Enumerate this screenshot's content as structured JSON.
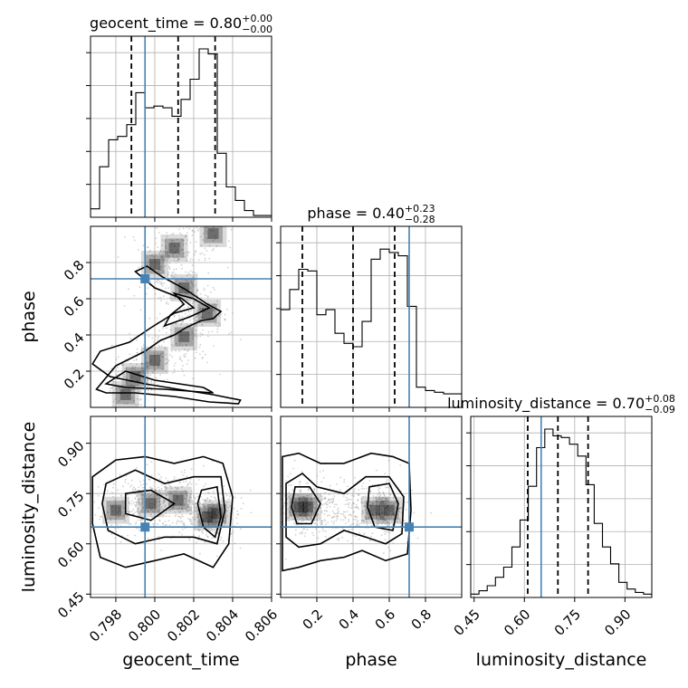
{
  "chart_data": {
    "type": "corner",
    "parameters": [
      {
        "name": "geocent_time",
        "axis_label": "geocent_time",
        "title": "geocent_time = 0.80",
        "title_plus": "+0.00",
        "title_minus": "−0.00",
        "range": [
          0.7967,
          0.806
        ],
        "ticks": [
          0.798,
          0.8,
          0.802,
          0.804,
          0.806
        ],
        "tick_labels": [
          "0.798",
          "0.800",
          "0.802",
          "0.804",
          "0.806"
        ],
        "quantiles": [
          0.7988,
          0.8012,
          0.8031
        ],
        "truth": 0.7995,
        "hist": [
          0.05,
          0.3,
          0.46,
          0.48,
          0.55,
          0.74,
          0.65,
          0.66,
          0.65,
          0.6,
          0.7,
          0.82,
          1.0,
          0.97,
          0.38,
          0.18,
          0.1,
          0.04,
          0.01,
          0.01
        ]
      },
      {
        "name": "phase",
        "axis_label": "phase",
        "title": "phase = 0.40",
        "title_plus": "+0.23",
        "title_minus": "−0.28",
        "range": [
          0.0,
          1.0
        ],
        "ticks": [
          0.2,
          0.4,
          0.6,
          0.8
        ],
        "tick_labels": [
          "0.2",
          "0.4",
          "0.6",
          "0.8"
        ],
        "quantiles": [
          0.12,
          0.4,
          0.63
        ],
        "truth": 0.71,
        "hist": [
          0.58,
          0.7,
          0.82,
          0.81,
          0.55,
          0.58,
          0.44,
          0.38,
          0.36,
          0.51,
          0.88,
          0.94,
          0.92,
          0.9,
          0.6,
          0.12,
          0.1,
          0.09,
          0.08,
          0.08
        ]
      },
      {
        "name": "luminosity_distance",
        "axis_label": "luminosity_distance",
        "title": "luminosity_distance = 0.70",
        "title_plus": "+0.08",
        "title_minus": "−0.09",
        "range": [
          0.44,
          0.98
        ],
        "ticks": [
          0.45,
          0.6,
          0.75,
          0.9
        ],
        "tick_labels": [
          "0.45",
          "0.60",
          "0.75",
          "0.90"
        ],
        "quantiles": [
          0.61,
          0.7,
          0.79
        ],
        "truth": 0.65,
        "hist": [
          0.02,
          0.04,
          0.07,
          0.12,
          0.18,
          0.3,
          0.46,
          0.66,
          0.89,
          1.0,
          0.96,
          0.95,
          0.91,
          0.84,
          0.67,
          0.44,
          0.3,
          0.2,
          0.09,
          0.05,
          0.03,
          0.02
        ]
      }
    ],
    "pairs": [
      {
        "x": "geocent_time",
        "y": "phase",
        "truth": [
          0.7995,
          0.71
        ],
        "density_path": [
          [
            0.7985,
            0.07
          ],
          [
            0.799,
            0.17
          ],
          [
            0.8,
            0.26
          ],
          [
            0.8015,
            0.39
          ],
          [
            0.8027,
            0.52
          ],
          [
            0.8015,
            0.66
          ],
          [
            0.8,
            0.79
          ],
          [
            0.801,
            0.88
          ],
          [
            0.803,
            0.96
          ]
        ],
        "contour_levels": [
          [
            [
              0.797,
              0.1
            ],
            [
              0.798,
              0.23
            ],
            [
              0.7995,
              0.31
            ],
            [
              0.8003,
              0.37
            ],
            [
              0.801,
              0.4
            ],
            [
              0.8016,
              0.44
            ],
            [
              0.8024,
              0.48
            ],
            [
              0.803,
              0.49
            ],
            [
              0.8034,
              0.53
            ],
            [
              0.8027,
              0.57
            ],
            [
              0.8016,
              0.65
            ],
            [
              0.8004,
              0.72
            ],
            [
              0.7996,
              0.78
            ],
            [
              0.799,
              0.75
            ],
            [
              0.8,
              0.66
            ],
            [
              0.8014,
              0.6
            ],
            [
              0.802,
              0.55
            ],
            [
              0.801,
              0.52
            ],
            [
              0.7998,
              0.44
            ],
            [
              0.7987,
              0.36
            ],
            [
              0.7972,
              0.31
            ],
            [
              0.7968,
              0.24
            ],
            [
              0.7977,
              0.17
            ],
            [
              0.7995,
              0.13
            ],
            [
              0.8012,
              0.1
            ],
            [
              0.803,
              0.07
            ],
            [
              0.8044,
              0.04
            ],
            [
              0.8043,
              0.02
            ],
            [
              0.8028,
              0.03
            ],
            [
              0.801,
              0.06
            ],
            [
              0.799,
              0.08
            ],
            [
              0.7975,
              0.08
            ]
          ],
          [
            [
              0.7975,
              0.13
            ],
            [
              0.7985,
              0.2
            ],
            [
              0.8,
              0.15
            ],
            [
              0.8025,
              0.11
            ],
            [
              0.803,
              0.08
            ],
            [
              0.8005,
              0.1
            ],
            [
              0.7985,
              0.11
            ]
          ],
          [
            [
              0.8005,
              0.45
            ],
            [
              0.8018,
              0.5
            ],
            [
              0.8028,
              0.55
            ],
            [
              0.802,
              0.6
            ],
            [
              0.801,
              0.63
            ],
            [
              0.8015,
              0.57
            ],
            [
              0.8008,
              0.51
            ]
          ]
        ]
      },
      {
        "x": "geocent_time",
        "y": "luminosity_distance",
        "truth": [
          0.7995,
          0.65
        ],
        "density_path": [
          [
            0.798,
            0.7
          ],
          [
            0.7998,
            0.72
          ],
          [
            0.8012,
            0.73
          ],
          [
            0.8027,
            0.68
          ],
          [
            0.8032,
            0.69
          ]
        ],
        "contour_levels": [
          [
            [
              0.7968,
              0.8
            ],
            [
              0.798,
              0.85
            ],
            [
              0.7995,
              0.86
            ],
            [
              0.801,
              0.84
            ],
            [
              0.8025,
              0.86
            ],
            [
              0.8035,
              0.84
            ],
            [
              0.804,
              0.74
            ],
            [
              0.8038,
              0.6
            ],
            [
              0.803,
              0.53
            ],
            [
              0.8015,
              0.57
            ],
            [
              0.8,
              0.55
            ],
            [
              0.7985,
              0.53
            ],
            [
              0.7972,
              0.56
            ],
            [
              0.7968,
              0.66
            ]
          ],
          [
            [
              0.7975,
              0.78
            ],
            [
              0.799,
              0.82
            ],
            [
              0.8005,
              0.78
            ],
            [
              0.802,
              0.8
            ],
            [
              0.8034,
              0.8
            ],
            [
              0.8036,
              0.7
            ],
            [
              0.8032,
              0.6
            ],
            [
              0.802,
              0.62
            ],
            [
              0.8005,
              0.62
            ],
            [
              0.799,
              0.6
            ],
            [
              0.7976,
              0.64
            ],
            [
              0.7973,
              0.72
            ]
          ],
          [
            [
              0.7985,
              0.75
            ],
            [
              0.7998,
              0.76
            ],
            [
              0.801,
              0.72
            ],
            [
              0.7998,
              0.67
            ],
            [
              0.7985,
              0.69
            ]
          ],
          [
            [
              0.8024,
              0.76
            ],
            [
              0.8032,
              0.77
            ],
            [
              0.8034,
              0.68
            ],
            [
              0.8031,
              0.62
            ],
            [
              0.8025,
              0.65
            ],
            [
              0.8022,
              0.72
            ]
          ]
        ]
      },
      {
        "x": "phase",
        "y": "luminosity_distance",
        "truth": [
          0.71,
          0.65
        ],
        "density_path": [
          [
            0.1,
            0.71
          ],
          [
            0.15,
            0.71
          ],
          [
            0.52,
            0.7
          ],
          [
            0.6,
            0.7
          ]
        ],
        "contour_levels": [
          [
            [
              0.01,
              0.86
            ],
            [
              0.1,
              0.87
            ],
            [
              0.22,
              0.84
            ],
            [
              0.35,
              0.84
            ],
            [
              0.5,
              0.87
            ],
            [
              0.62,
              0.86
            ],
            [
              0.71,
              0.84
            ],
            [
              0.72,
              0.7
            ],
            [
              0.7,
              0.57
            ],
            [
              0.58,
              0.55
            ],
            [
              0.45,
              0.58
            ],
            [
              0.35,
              0.56
            ],
            [
              0.22,
              0.55
            ],
            [
              0.1,
              0.53
            ],
            [
              0.01,
              0.52
            ]
          ],
          [
            [
              0.03,
              0.78
            ],
            [
              0.12,
              0.81
            ],
            [
              0.2,
              0.77
            ],
            [
              0.35,
              0.75
            ],
            [
              0.47,
              0.8
            ],
            [
              0.6,
              0.8
            ],
            [
              0.68,
              0.74
            ],
            [
              0.67,
              0.63
            ],
            [
              0.58,
              0.6
            ],
            [
              0.47,
              0.62
            ],
            [
              0.35,
              0.64
            ],
            [
              0.22,
              0.6
            ],
            [
              0.1,
              0.59
            ],
            [
              0.03,
              0.62
            ]
          ],
          [
            [
              0.08,
              0.77
            ],
            [
              0.16,
              0.77
            ],
            [
              0.22,
              0.72
            ],
            [
              0.17,
              0.66
            ],
            [
              0.09,
              0.66
            ],
            [
              0.06,
              0.71
            ]
          ],
          [
            [
              0.49,
              0.77
            ],
            [
              0.6,
              0.78
            ],
            [
              0.65,
              0.72
            ],
            [
              0.62,
              0.64
            ],
            [
              0.52,
              0.65
            ],
            [
              0.48,
              0.71
            ]
          ]
        ]
      }
    ],
    "colors": {
      "truth": "#4682b4",
      "density": "#000000",
      "scatter": "#9a9a9a"
    },
    "grid": true
  }
}
